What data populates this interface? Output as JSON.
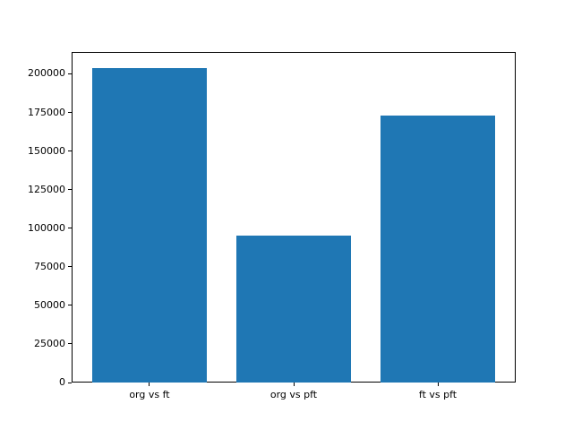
{
  "chart_data": {
    "type": "bar",
    "categories": [
      "org vs ft",
      "org vs pft",
      "ft vs pft"
    ],
    "values": [
      204000,
      95000,
      173000
    ],
    "title": "",
    "xlabel": "",
    "ylabel": "",
    "ylim": [
      0,
      214200
    ],
    "yticks": [
      0,
      25000,
      50000,
      75000,
      100000,
      125000,
      150000,
      175000,
      200000
    ],
    "bar_color": "#1f77b4",
    "grid": false,
    "legend": null
  }
}
